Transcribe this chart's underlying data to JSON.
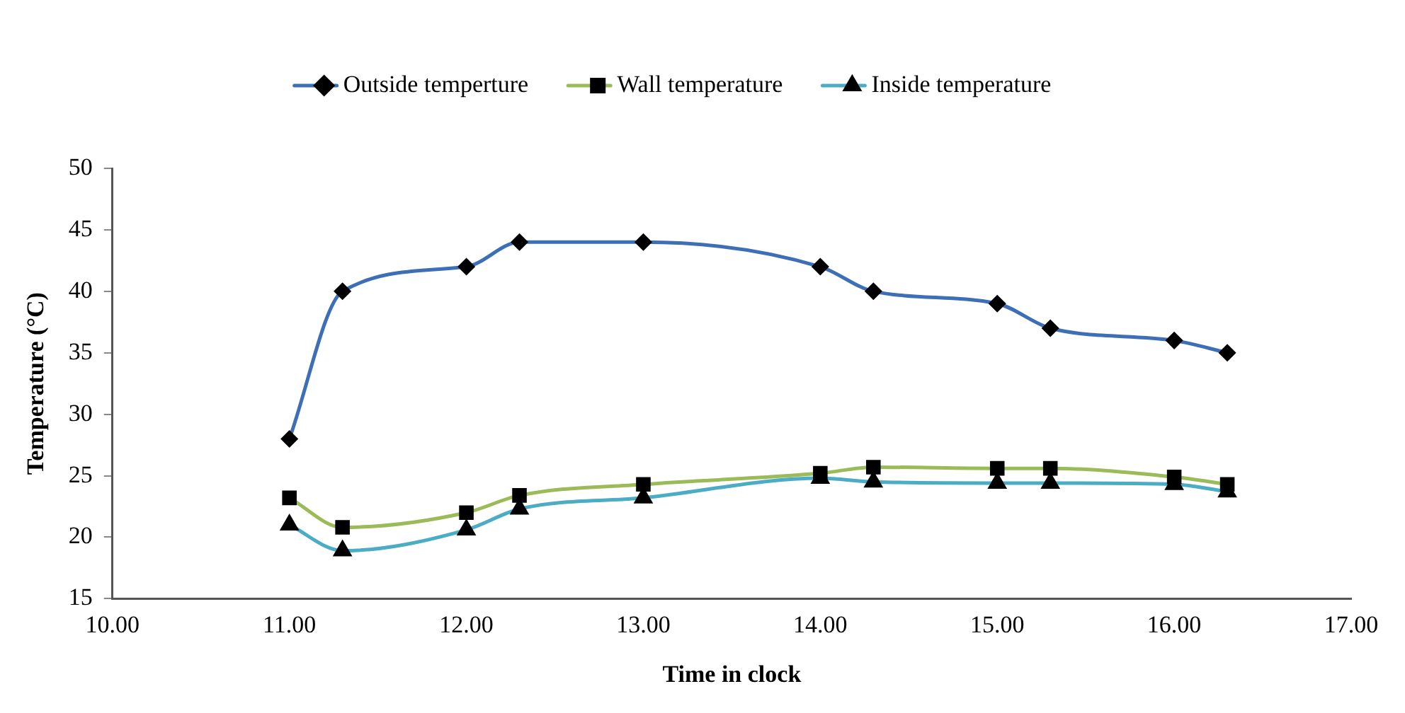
{
  "chart_data": {
    "type": "line",
    "xlabel": "Time in clock",
    "ylabel": "Temperature (°C)",
    "x": [
      11,
      11.3,
      12,
      12.3,
      13,
      14,
      14.3,
      15,
      15.3,
      16,
      16.3
    ],
    "series": [
      {
        "name": "Outside temperture",
        "color": "#3d6fb6",
        "marker": "diamond",
        "values": [
          28,
          40,
          42,
          44,
          44,
          42,
          40,
          39,
          37,
          36,
          35
        ]
      },
      {
        "name": "Wall temperature",
        "color": "#9bbb59",
        "marker": "square",
        "values": [
          23.2,
          20.8,
          22,
          23.4,
          24.3,
          25.2,
          25.7,
          25.6,
          25.6,
          24.9,
          24.3
        ]
      },
      {
        "name": "Inside temperature",
        "color": "#4bacc6",
        "marker": "triangle",
        "values": [
          21,
          18.9,
          20.6,
          22.3,
          23.2,
          24.8,
          24.5,
          24.4,
          24.4,
          24.3,
          23.7
        ]
      }
    ],
    "xlim": [
      10,
      17
    ],
    "xticks": [
      {
        "value": 10,
        "label": "10.00"
      },
      {
        "value": 11,
        "label": "11.00"
      },
      {
        "value": 12,
        "label": "12.00"
      },
      {
        "value": 13,
        "label": "13.00"
      },
      {
        "value": 14,
        "label": "14.00"
      },
      {
        "value": 15,
        "label": "15.00"
      },
      {
        "value": 16,
        "label": "16.00"
      },
      {
        "value": 17,
        "label": "17.00"
      }
    ],
    "ylim": [
      15,
      50
    ],
    "yticks": [
      15,
      20,
      25,
      30,
      35,
      40,
      45,
      50
    ],
    "grid": false,
    "legend": "top",
    "line_style": "solid"
  }
}
